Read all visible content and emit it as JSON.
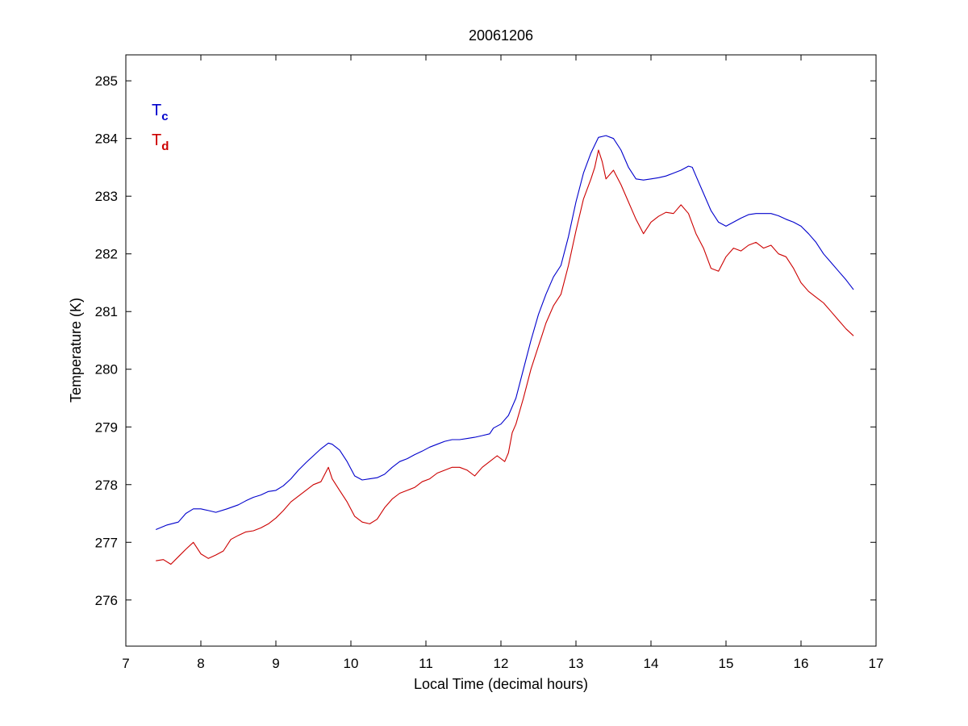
{
  "chart_data": {
    "type": "line",
    "title": "20061206",
    "xlabel": "Local Time (decimal hours)",
    "ylabel": "Temperature (K)",
    "xlim": [
      7,
      17
    ],
    "ylim": [
      275.2,
      285.45
    ],
    "xticks": [
      "7",
      "8",
      "9",
      "10",
      "11",
      "12",
      "13",
      "14",
      "15",
      "16",
      "17"
    ],
    "yticks": [
      "276",
      "277",
      "278",
      "279",
      "280",
      "281",
      "282",
      "283",
      "284",
      "285"
    ],
    "grid": false,
    "legend_position": "top-left",
    "series": [
      {
        "name": "T",
        "subscript": "c",
        "color": "#0000cc",
        "x": [
          7.4,
          7.55,
          7.7,
          7.8,
          7.9,
          8.0,
          8.1,
          8.2,
          8.35,
          8.5,
          8.6,
          8.7,
          8.8,
          8.9,
          9.0,
          9.1,
          9.2,
          9.3,
          9.4,
          9.5,
          9.6,
          9.7,
          9.75,
          9.85,
          9.95,
          10.05,
          10.15,
          10.25,
          10.35,
          10.45,
          10.55,
          10.65,
          10.75,
          10.85,
          10.95,
          11.05,
          11.15,
          11.25,
          11.35,
          11.45,
          11.55,
          11.65,
          11.75,
          11.85,
          11.9,
          12.0,
          12.1,
          12.2,
          12.3,
          12.4,
          12.5,
          12.6,
          12.7,
          12.8,
          12.9,
          13.0,
          13.1,
          13.2,
          13.3,
          13.4,
          13.5,
          13.6,
          13.7,
          13.8,
          13.9,
          14.0,
          14.1,
          14.2,
          14.3,
          14.4,
          14.5,
          14.55,
          14.6,
          14.7,
          14.8,
          14.9,
          15.0,
          15.1,
          15.2,
          15.3,
          15.4,
          15.5,
          15.6,
          15.7,
          15.8,
          15.9,
          16.0,
          16.1,
          16.2,
          16.3,
          16.4,
          16.5,
          16.6,
          16.7
        ],
        "y": [
          277.22,
          277.3,
          277.35,
          277.5,
          277.58,
          277.58,
          277.55,
          277.52,
          277.58,
          277.65,
          277.72,
          277.78,
          277.82,
          277.88,
          277.9,
          277.98,
          278.1,
          278.25,
          278.38,
          278.5,
          278.62,
          278.72,
          278.7,
          278.6,
          278.4,
          278.15,
          278.08,
          278.1,
          278.12,
          278.18,
          278.3,
          278.4,
          278.45,
          278.52,
          278.58,
          278.65,
          278.7,
          278.75,
          278.78,
          278.78,
          278.8,
          278.82,
          278.85,
          278.88,
          278.98,
          279.05,
          279.2,
          279.5,
          280.0,
          280.5,
          280.95,
          281.3,
          281.6,
          281.8,
          282.3,
          282.9,
          283.4,
          283.75,
          284.02,
          284.05,
          284.0,
          283.8,
          283.5,
          283.3,
          283.28,
          283.3,
          283.32,
          283.35,
          283.4,
          283.45,
          283.52,
          283.5,
          283.35,
          283.05,
          282.75,
          282.55,
          282.48,
          282.55,
          282.62,
          282.68,
          282.7,
          282.7,
          282.7,
          282.66,
          282.6,
          282.55,
          282.48,
          282.35,
          282.2,
          282.0,
          281.85,
          281.7,
          281.55,
          281.38
        ]
      },
      {
        "name": "T",
        "subscript": "d",
        "color": "#cc0000",
        "x": [
          7.4,
          7.5,
          7.6,
          7.7,
          7.8,
          7.9,
          8.0,
          8.1,
          8.2,
          8.3,
          8.4,
          8.5,
          8.6,
          8.7,
          8.8,
          8.9,
          9.0,
          9.1,
          9.2,
          9.3,
          9.4,
          9.5,
          9.6,
          9.7,
          9.75,
          9.85,
          9.95,
          10.05,
          10.15,
          10.25,
          10.35,
          10.45,
          10.55,
          10.65,
          10.75,
          10.85,
          10.95,
          11.05,
          11.15,
          11.25,
          11.35,
          11.45,
          11.55,
          11.65,
          11.75,
          11.85,
          11.95,
          12.05,
          12.1,
          12.15,
          12.2,
          12.3,
          12.4,
          12.5,
          12.55,
          12.6,
          12.7,
          12.8,
          12.9,
          13.0,
          13.1,
          13.2,
          13.25,
          13.3,
          13.35,
          13.4,
          13.5,
          13.6,
          13.7,
          13.8,
          13.9,
          14.0,
          14.1,
          14.2,
          14.3,
          14.4,
          14.5,
          14.6,
          14.7,
          14.8,
          14.9,
          15.0,
          15.1,
          15.2,
          15.3,
          15.4,
          15.5,
          15.6,
          15.7,
          15.8,
          15.9,
          16.0,
          16.1,
          16.2,
          16.3,
          16.4,
          16.5,
          16.6,
          16.7
        ],
        "y": [
          276.68,
          276.7,
          276.62,
          276.75,
          276.88,
          277.0,
          276.8,
          276.72,
          276.78,
          276.85,
          277.05,
          277.12,
          277.18,
          277.2,
          277.25,
          277.32,
          277.42,
          277.55,
          277.7,
          277.8,
          277.9,
          278.0,
          278.05,
          278.3,
          278.1,
          277.9,
          277.7,
          277.45,
          277.35,
          277.32,
          277.4,
          277.6,
          277.75,
          277.85,
          277.9,
          277.95,
          278.05,
          278.1,
          278.2,
          278.25,
          278.3,
          278.3,
          278.25,
          278.15,
          278.3,
          278.4,
          278.5,
          278.4,
          278.55,
          278.9,
          279.05,
          279.5,
          280.0,
          280.4,
          280.6,
          280.8,
          281.1,
          281.3,
          281.8,
          282.4,
          282.95,
          283.3,
          283.5,
          283.8,
          283.6,
          283.3,
          283.45,
          283.2,
          282.9,
          282.6,
          282.35,
          282.55,
          282.65,
          282.72,
          282.7,
          282.85,
          282.7,
          282.35,
          282.1,
          281.75,
          281.7,
          281.95,
          282.1,
          282.05,
          282.15,
          282.2,
          282.1,
          282.15,
          282.0,
          281.95,
          281.75,
          281.5,
          281.35,
          281.25,
          281.15,
          281.0,
          280.85,
          280.7,
          280.58
        ]
      }
    ]
  }
}
